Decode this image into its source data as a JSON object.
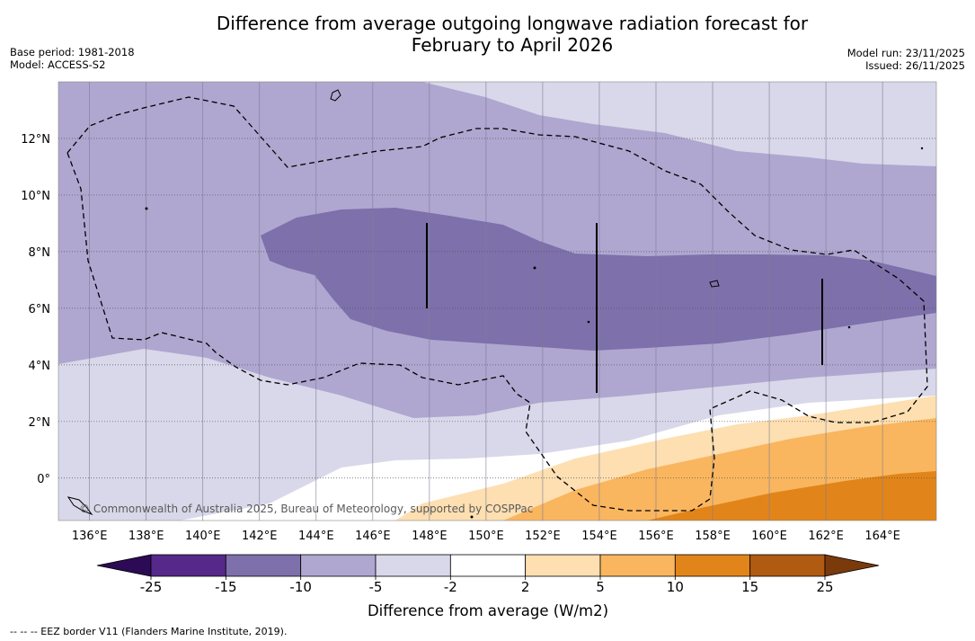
{
  "title_line1": "Difference from average outgoing longwave radiation forecast for",
  "title_line2": "February to April 2026",
  "base_period": "Base period: 1981-2018",
  "model": "Model: ACCESS-S2",
  "model_run": "Model run: 23/11/2025",
  "issued": "Issued: 26/11/2025",
  "copyright": "© Commonwealth of Australia 2025, Bureau of Meteorology, supported by COSPPac",
  "map": {
    "lat_labels": [
      "12°N",
      "10°N",
      "8°N",
      "6°N",
      "4°N",
      "2°N",
      "0°"
    ],
    "lon_labels": [
      "136°E",
      "138°E",
      "140°E",
      "142°E",
      "144°E",
      "146°E",
      "148°E",
      "150°E",
      "152°E",
      "154°E",
      "156°E",
      "158°E",
      "160°E",
      "162°E",
      "164°E"
    ],
    "lon_values": [
      136,
      138,
      140,
      142,
      144,
      146,
      148,
      150,
      152,
      154,
      156,
      158,
      160,
      162,
      164
    ],
    "lat_values": [
      12,
      10,
      8,
      6,
      4,
      2,
      0
    ],
    "lon_range": [
      134.9,
      165.9
    ],
    "lat_range": [
      -1.5,
      14
    ]
  },
  "colorbar": {
    "ticks": [
      "-25",
      "-15",
      "-10",
      "-5",
      "-2",
      "2",
      "5",
      "10",
      "15",
      "25"
    ],
    "colors": [
      "#2d0a55",
      "#55288a",
      "#7e70ab",
      "#afa7d0",
      "#d8d8ea",
      "#ffffff",
      "#fddfb1",
      "#f9b65f",
      "#e1851a",
      "#b05a12",
      "#7a3a0c"
    ],
    "label": "Difference from average (W/m2)"
  },
  "footnote": "--  --  -- EEZ border V11 (Flanders Marine Institute, 2019)."
}
